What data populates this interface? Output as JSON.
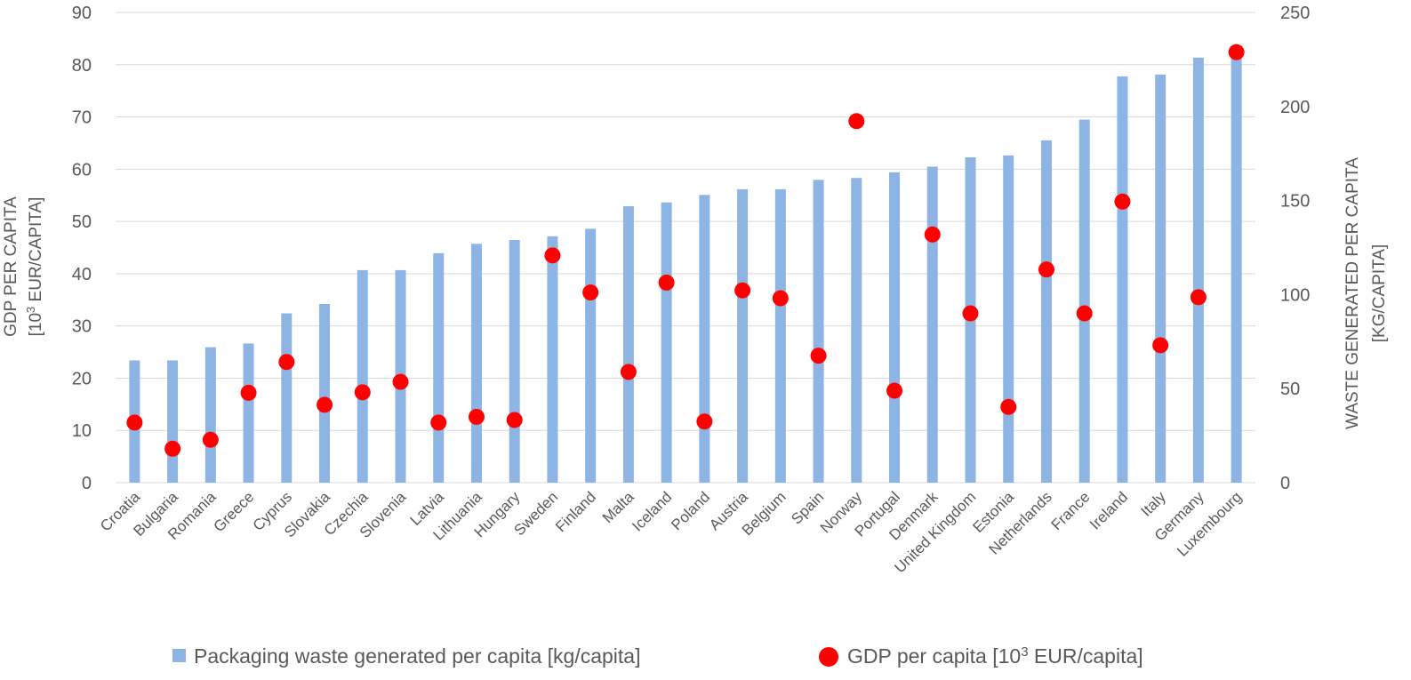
{
  "chart_data": {
    "type": "bar",
    "categories": [
      "Croatia",
      "Bulgaria",
      "Romania",
      "Greece",
      "Cyprus",
      "Slovakia",
      "Czechia",
      "Slovenia",
      "Latvia",
      "Lithuania",
      "Hungary",
      "Sweden",
      "Finland",
      "Malta",
      "Iceland",
      "Poland",
      "Austria",
      "Belgium",
      "Spain",
      "Norway",
      "Portugal",
      "Denmark",
      "United Kingdom",
      "Estonia",
      "Netherlands",
      "France",
      "Ireland",
      "Italy",
      "Germany",
      "Luxembourg"
    ],
    "series": [
      {
        "name": "Packaging waste generated per capita [kg/capita]",
        "type": "bar",
        "axis": "right",
        "color": "#8EB4E3",
        "values": [
          65,
          65,
          72,
          74,
          90,
          95,
          113,
          113,
          122,
          127,
          129,
          131,
          135,
          147,
          149,
          153,
          156,
          156,
          161,
          162,
          165,
          168,
          173,
          174,
          182,
          193,
          216,
          217,
          226,
          227
        ]
      },
      {
        "name": "GDP per capita [10³ EUR/capita]",
        "type": "scatter",
        "axis": "left",
        "color": "#FF0000",
        "values": [
          11.5,
          6.5,
          8.2,
          17.2,
          23.1,
          14.9,
          17.3,
          19.3,
          11.5,
          12.6,
          12.0,
          43.5,
          36.4,
          21.2,
          38.3,
          11.7,
          36.8,
          35.3,
          24.3,
          69.2,
          17.6,
          47.5,
          32.4,
          14.5,
          40.8,
          32.4,
          53.8,
          26.3,
          35.5,
          82.4
        ]
      }
    ],
    "y_left": {
      "label_line1": "GDP PER CAPITA",
      "label_line2_pre": "[10",
      "label_line2_sup": "3",
      "label_line2_post": " EUR/CAPITA]",
      "ylim": [
        0,
        90
      ],
      "ticks": [
        0,
        10,
        20,
        30,
        40,
        50,
        60,
        70,
        80,
        90
      ]
    },
    "y_right": {
      "label_line1": "WASTE GENERATED PER CAPITA",
      "label_line2": "[KG/CAPITA]",
      "ylim": [
        0,
        250
      ],
      "ticks": [
        0,
        50,
        100,
        150,
        200,
        250
      ]
    },
    "grid": true,
    "legend_position": "bottom",
    "legend": {
      "bar_label": "Packaging waste generated per capita [kg/capita]",
      "dot_label_pre": "GDP per capita [10",
      "dot_label_sup": "3",
      "dot_label_post": " EUR/capita]"
    }
  }
}
